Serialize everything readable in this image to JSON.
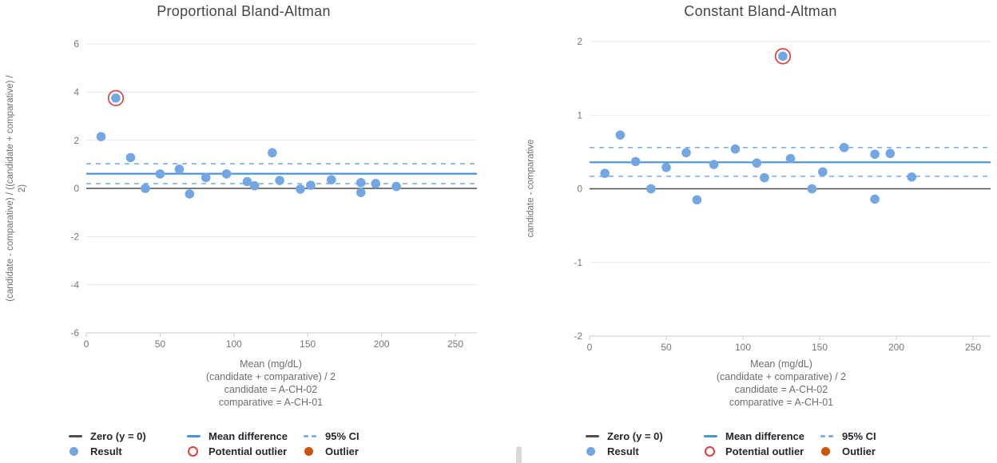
{
  "chart_data": [
    {
      "type": "scatter",
      "title": "Proportional Bland-Altman",
      "y_axis_label_lines": [
        "(candidate - comparative) / ((candidate + comparative) /",
        "2)"
      ],
      "x_ticks": [
        0,
        50,
        100,
        150,
        200,
        250
      ],
      "y_ticks": [
        6,
        4,
        2,
        0,
        -2,
        -4,
        -6
      ],
      "xlim": [
        0,
        264
      ],
      "ylim": [
        -6,
        6
      ],
      "zero_line_y": 0,
      "mean_difference": 0.61,
      "ci_upper": 1.02,
      "ci_lower": 0.2,
      "points": {
        "x": [
          10,
          20,
          30,
          40,
          50,
          63,
          70,
          81,
          95,
          109,
          114,
          126,
          131,
          145,
          152,
          166,
          186,
          186,
          196,
          210
        ],
        "y": [
          2.15,
          3.75,
          1.28,
          0.0,
          0.6,
          0.8,
          -0.23,
          0.45,
          0.6,
          0.28,
          0.11,
          1.48,
          0.33,
          -0.03,
          0.13,
          0.36,
          0.24,
          -0.17,
          0.2,
          0.08
        ]
      },
      "potential_outlier": {
        "x": 20,
        "y": 3.75
      }
    },
    {
      "type": "scatter",
      "title": "Constant Bland-Altman",
      "y_axis_label_lines": [
        "candidate - comparative"
      ],
      "x_ticks": [
        0,
        50,
        100,
        150,
        200,
        250
      ],
      "y_ticks": [
        2,
        1,
        0,
        -1,
        -2
      ],
      "xlim": [
        0,
        261
      ],
      "ylim": [
        -2,
        2
      ],
      "zero_line_y": 0,
      "mean_difference": 0.36,
      "ci_upper": 0.56,
      "ci_lower": 0.17,
      "points": {
        "x": [
          10,
          20,
          30,
          40,
          50,
          63,
          70,
          81,
          95,
          109,
          114,
          126,
          131,
          145,
          152,
          166,
          186,
          186,
          196,
          210
        ],
        "y": [
          0.21,
          0.73,
          0.37,
          0.0,
          0.29,
          0.49,
          -0.15,
          0.33,
          0.54,
          0.35,
          0.15,
          1.8,
          0.41,
          0.0,
          0.23,
          0.56,
          0.47,
          -0.14,
          0.48,
          0.16
        ]
      },
      "potential_outlier": {
        "x": 126,
        "y": 1.8
      }
    }
  ],
  "x_axis_title_lines": [
    "Mean (mg/dL)",
    "(candidate + comparative) / 2",
    "candidate = A-CH-02",
    "comparative = A-CH-01"
  ],
  "legend": {
    "zero": "Zero (y = 0)",
    "mean_difference": "Mean difference",
    "ci": "95% CI",
    "result": "Result",
    "potential_outlier": "Potential outlier",
    "outlier": "Outlier"
  },
  "colors": {
    "point": "#72a7e3",
    "mean_line": "#4a94d9",
    "ci_line": "#7cb0e8",
    "zero_line": "#4f4f4f",
    "potential_outlier_ring": "#e2413c",
    "outlier_dot": "#cd5308",
    "gridline": "#e9e9e9",
    "axis_line": "#c9c9c9",
    "tick_label": "#767676",
    "axis_title_text": "#6d6d6d",
    "title_text": "#45444c",
    "legend_text": "#23262c"
  }
}
